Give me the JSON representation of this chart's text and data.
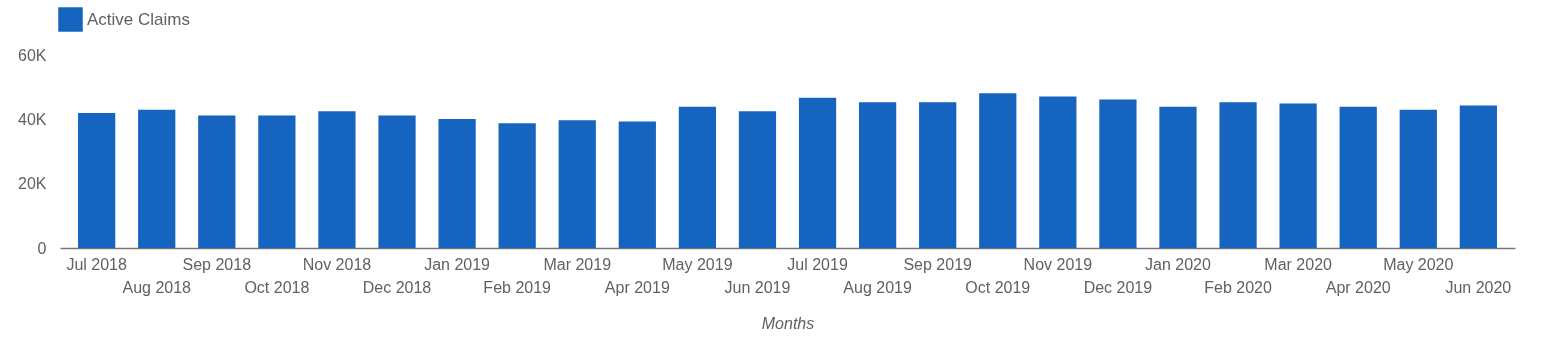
{
  "chart_data": {
    "type": "bar",
    "xlabel": "Months",
    "categories": [
      "Jul 2018",
      "Aug 2018",
      "Sep 2018",
      "Oct 2018",
      "Nov 2018",
      "Dec 2018",
      "Jan 2019",
      "Feb 2019",
      "Mar 2019",
      "Apr 2019",
      "May 2019",
      "Jun 2019",
      "Jul 2019",
      "Aug 2019",
      "Sep 2019",
      "Oct 2019",
      "Nov 2019",
      "Dec 2019",
      "Jan 2020",
      "Feb 2020",
      "Mar 2020",
      "Apr 2020",
      "May 2020",
      "Jun 2020"
    ],
    "series": [
      {
        "name": "Active Claims",
        "color": "#1565c0",
        "values": [
          42000,
          43000,
          41200,
          41200,
          42500,
          41200,
          40100,
          38800,
          39700,
          39300,
          43900,
          42500,
          46700,
          45300,
          45300,
          48100,
          47100,
          46200,
          43900,
          45300,
          44900,
          43900,
          43000,
          44300
        ]
      }
    ],
    "ylim": [
      0,
      60000
    ],
    "yticks": [
      {
        "value": 0,
        "label": "0"
      },
      {
        "value": 20000,
        "label": "20K"
      },
      {
        "value": 40000,
        "label": "40K"
      },
      {
        "value": 60000,
        "label": "60K"
      }
    ],
    "grid": false,
    "legend": "top left"
  }
}
